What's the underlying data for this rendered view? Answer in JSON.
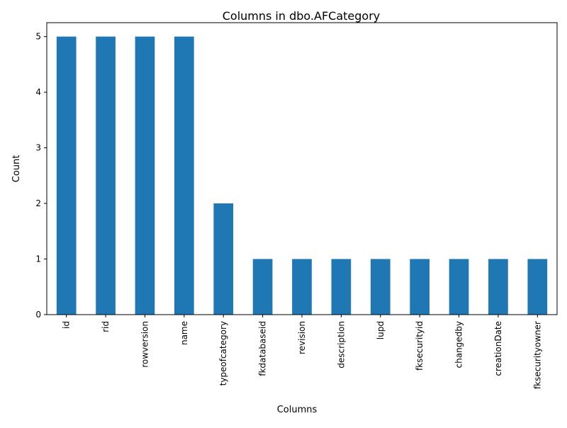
{
  "chart_data": {
    "type": "bar",
    "title": "Columns in dbo.AFCategory",
    "xlabel": "Columns",
    "ylabel": "Count",
    "categories": [
      "id",
      "rid",
      "rowversion",
      "name",
      "typeofcategory",
      "fkdatabaseid",
      "revision",
      "description",
      "lupd",
      "fksecurityid",
      "changedby",
      "creationDate",
      "fksecurityowner"
    ],
    "values": [
      5,
      5,
      5,
      5,
      2,
      1,
      1,
      1,
      1,
      1,
      1,
      1,
      1
    ],
    "yticks": [
      "0",
      "1",
      "2",
      "3",
      "4",
      "5"
    ],
    "ylim": [
      0,
      5.25
    ],
    "bar_color": "#1f77b4",
    "grid": false,
    "legend": false
  }
}
